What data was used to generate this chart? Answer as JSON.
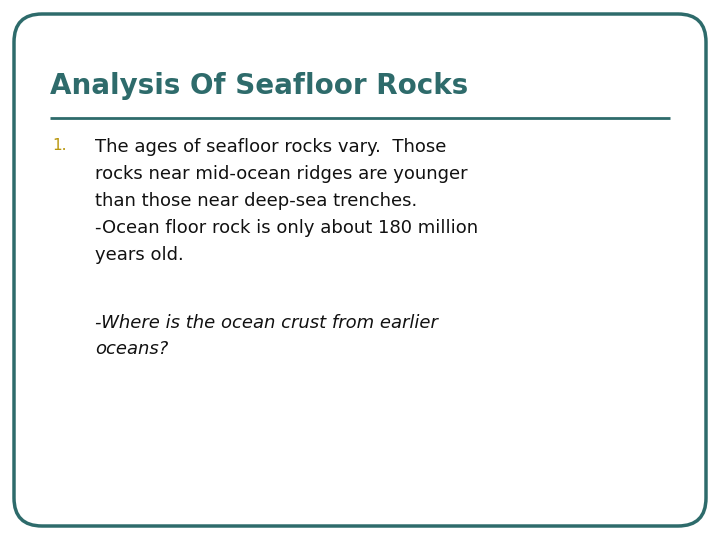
{
  "title": "Analysis Of Seafloor Rocks",
  "title_color": "#2e6b6b",
  "title_fontsize": 20,
  "line_color": "#2e6b6b",
  "number_color": "#b8960c",
  "number_fontsize": 11,
  "body_fontsize": 13,
  "italic_fontsize": 13,
  "body_color": "#111111",
  "background_color": "#ffffff",
  "border_color": "#2e6b6b",
  "border_linewidth": 2.5,
  "bullet_number": "1.",
  "bullet_text_line1": "The ages of seafloor rocks vary.  Those",
  "bullet_text_line2": "rocks near mid-ocean ridges are younger",
  "bullet_text_line3": "than those near deep-sea trenches.",
  "bullet_text_line4": "-Ocean floor rock is only about 180 million",
  "bullet_text_line5": "years old.",
  "italic_text_line1": "-Where is the ocean crust from earlier",
  "italic_text_line2": "oceans?"
}
